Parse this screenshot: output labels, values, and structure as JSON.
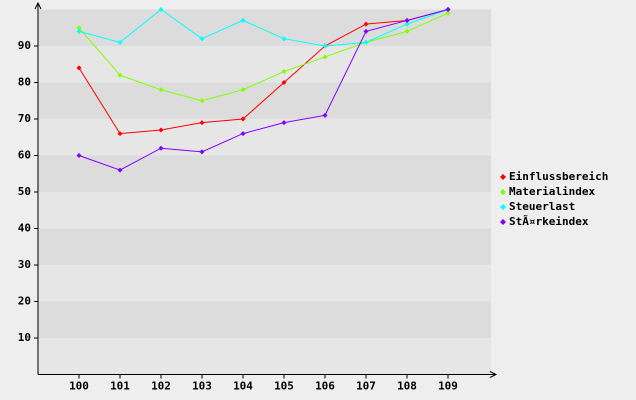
{
  "chart_data": {
    "type": "line",
    "categories": [
      "100",
      "101",
      "102",
      "103",
      "104",
      "105",
      "106",
      "107",
      "108",
      "109"
    ],
    "series": [
      {
        "name": "Einflussbereich",
        "color": "#ff0000",
        "values": [
          84,
          66,
          67,
          69,
          70,
          80,
          90,
          96,
          97,
          100
        ]
      },
      {
        "name": "Materialindex",
        "color": "#80ff00",
        "values": [
          95,
          82,
          78,
          75,
          78,
          83,
          87,
          91,
          94,
          99
        ]
      },
      {
        "name": "Steuerlast",
        "color": "#00ffff",
        "values": [
          94,
          91,
          100,
          92,
          97,
          92,
          90,
          91,
          96,
          100
        ]
      },
      {
        "name": "StÃ¤rkeindex",
        "color": "#8000ff",
        "values": [
          60,
          56,
          62,
          61,
          66,
          69,
          71,
          94,
          97,
          100
        ]
      }
    ],
    "ylim": [
      0,
      100
    ],
    "yticks": [
      10,
      20,
      30,
      40,
      50,
      60,
      70,
      80,
      90
    ],
    "grid": true,
    "legend": "right"
  }
}
